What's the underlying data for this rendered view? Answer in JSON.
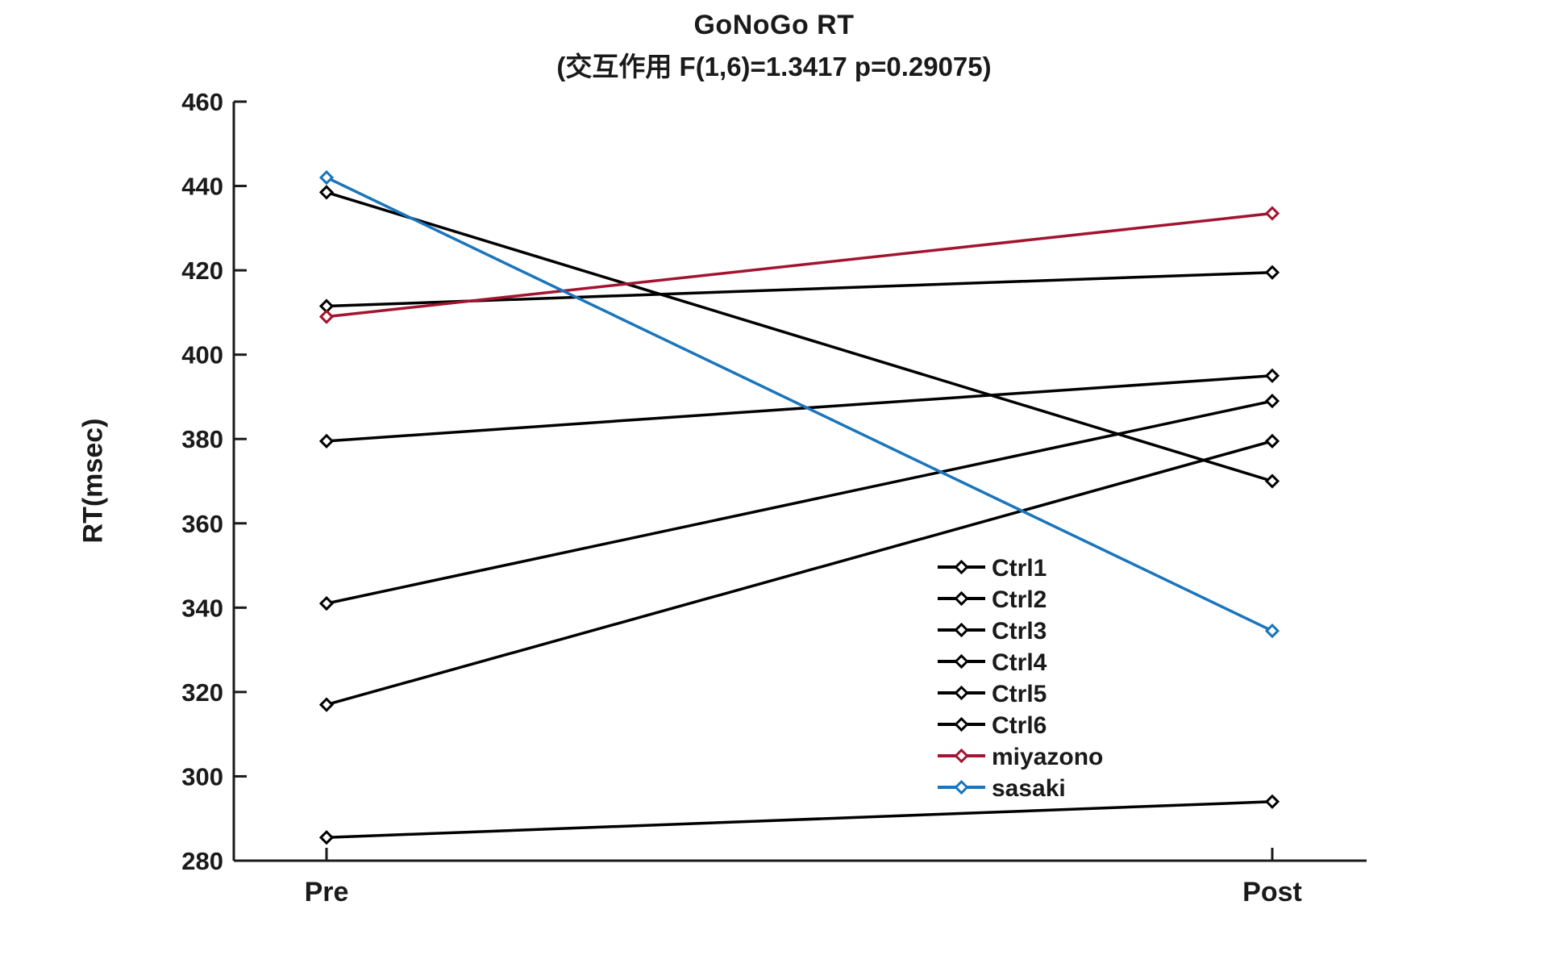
{
  "chart_data": {
    "type": "line",
    "title": "GoNoGo RT",
    "subtitle": "(交互作用 F(1,6)=1.3417 p=0.29075)",
    "ylabel": "RT(msec)",
    "xlabel": "",
    "categories": [
      "Pre",
      "Post"
    ],
    "ylim": [
      280,
      460
    ],
    "y_ticks": [
      280,
      300,
      320,
      340,
      360,
      380,
      400,
      420,
      440,
      460
    ],
    "grid": false,
    "legend_position": "inside-right-center",
    "marker": "diamond",
    "colors": {
      "control": "#000000",
      "miyazono": "#A2142F",
      "sasaki": "#1A75BC",
      "axis": "#1a1a1a",
      "background": "#ffffff"
    },
    "series": [
      {
        "name": "Ctrl1",
        "color": "#000000",
        "values": [
          438.5,
          370
        ]
      },
      {
        "name": "Ctrl2",
        "color": "#000000",
        "values": [
          411.5,
          419.5
        ]
      },
      {
        "name": "Ctrl3",
        "color": "#000000",
        "values": [
          379.5,
          395
        ]
      },
      {
        "name": "Ctrl4",
        "color": "#000000",
        "values": [
          341,
          389
        ]
      },
      {
        "name": "Ctrl5",
        "color": "#000000",
        "values": [
          317,
          379.5
        ]
      },
      {
        "name": "Ctrl6",
        "color": "#000000",
        "values": [
          285.5,
          294
        ]
      },
      {
        "name": "miyazono",
        "color": "#A2142F",
        "values": [
          409,
          433.5
        ]
      },
      {
        "name": "sasaki",
        "color": "#1A75BC",
        "values": [
          442,
          334.5
        ]
      }
    ]
  }
}
